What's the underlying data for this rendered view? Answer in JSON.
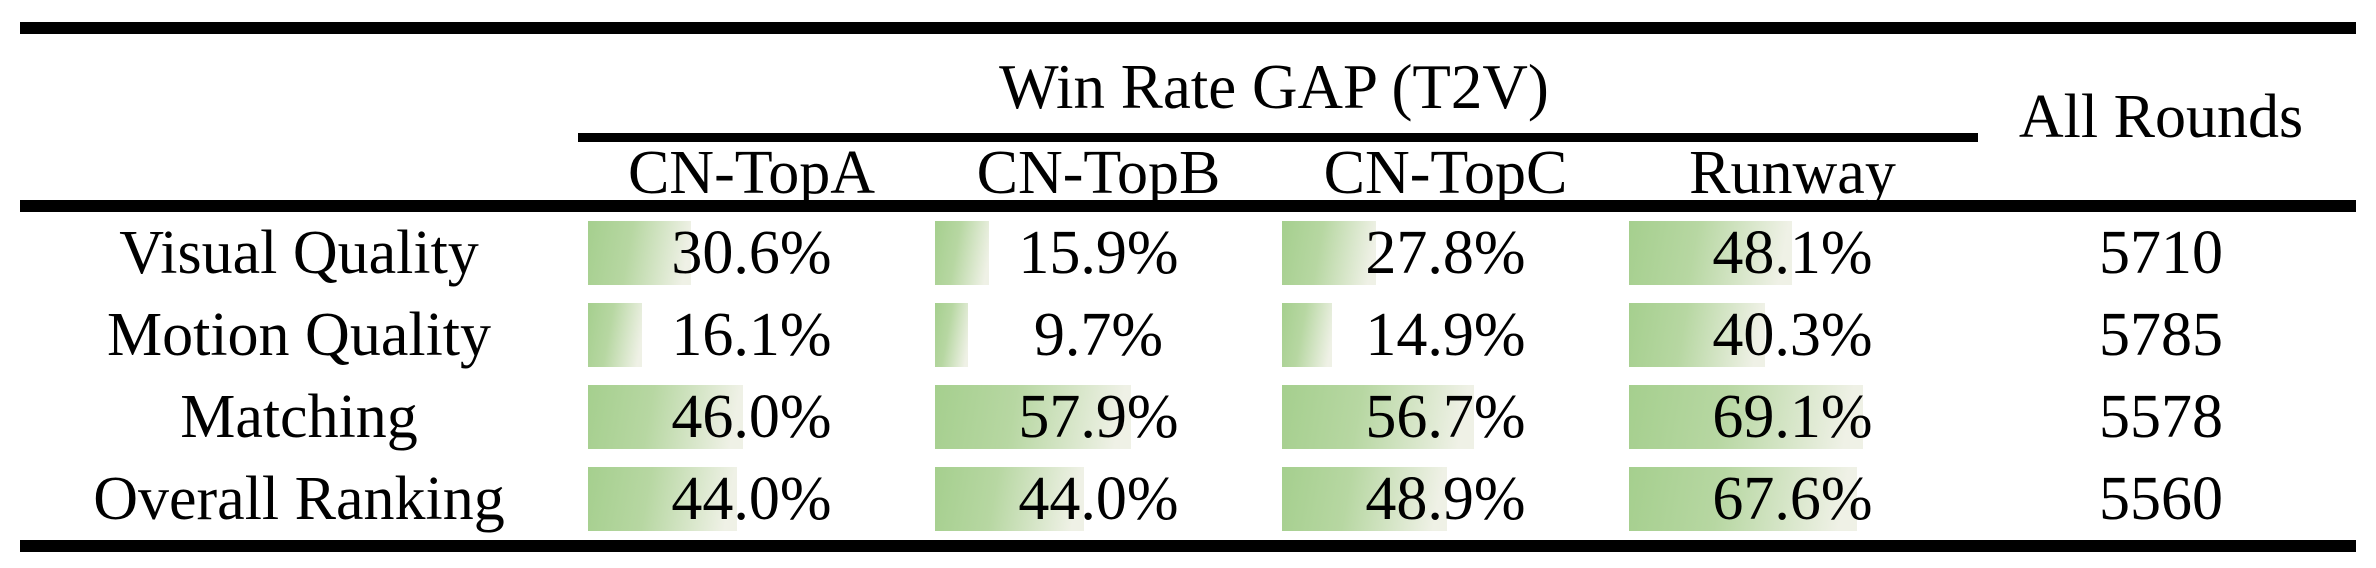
{
  "colors": {
    "background": "#ffffff",
    "text": "#000000",
    "rule": "#000000",
    "bar_gradient_start": "#a5cf8e",
    "bar_gradient_mid": "#b7d7a2",
    "bar_gradient_end": "#eff1e6"
  },
  "table": {
    "group_header": "Win Rate GAP (T2V)",
    "all_rounds_header": "All Rounds",
    "columns": [
      "CN-TopA",
      "CN-TopB",
      "CN-TopC",
      "Runway"
    ],
    "rows": [
      {
        "label": "Visual Quality",
        "values": [
          30.6,
          15.9,
          27.8,
          48.1
        ],
        "display": [
          "30.6%",
          "15.9%",
          "27.8%",
          "48.1%"
        ],
        "all_rounds": "5710"
      },
      {
        "label": "Motion Quality",
        "values": [
          16.1,
          9.7,
          14.9,
          40.3
        ],
        "display": [
          "16.1%",
          "9.7%",
          "14.9%",
          "40.3%"
        ],
        "all_rounds": "5785"
      },
      {
        "label": "Matching",
        "values": [
          46.0,
          57.9,
          56.7,
          69.1
        ],
        "display": [
          "46.0%",
          "57.9%",
          "56.7%",
          "69.1%"
        ],
        "all_rounds": "5578"
      },
      {
        "label": "Overall Ranking",
        "values": [
          44.0,
          44.0,
          48.9,
          67.6
        ],
        "display": [
          "44.0%",
          "44.0%",
          "48.9%",
          "67.6%"
        ],
        "all_rounds": "5560"
      }
    ]
  }
}
